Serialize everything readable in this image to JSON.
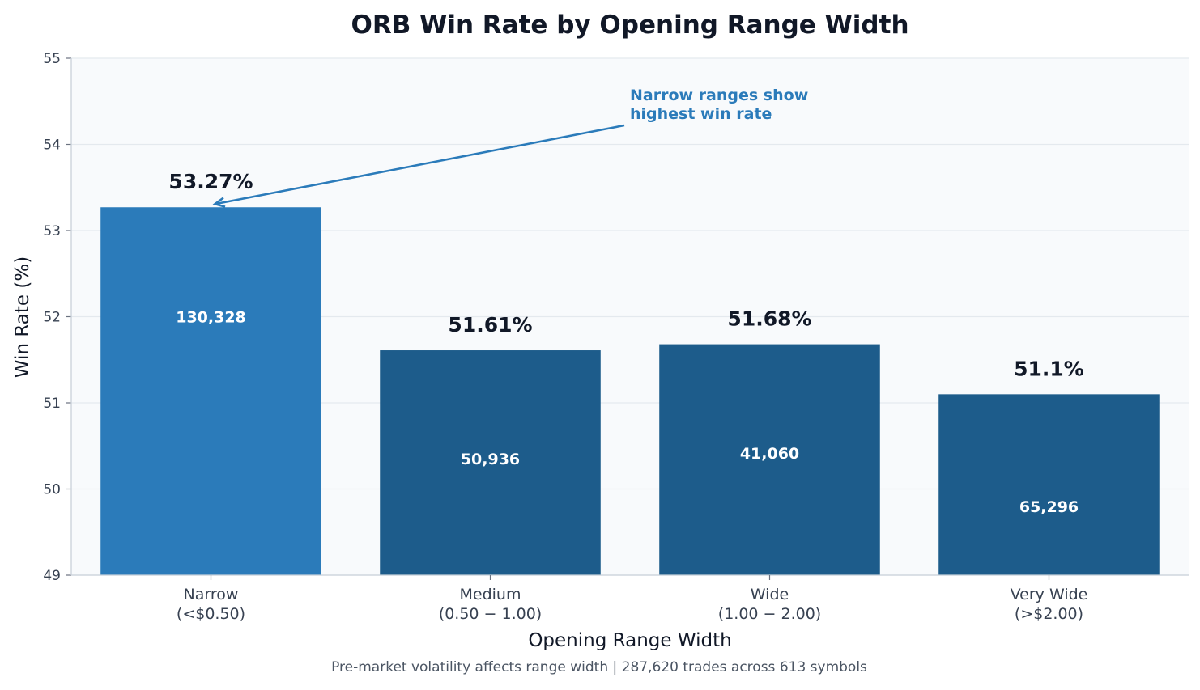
{
  "chart_data": {
    "type": "bar",
    "title": "ORB Win Rate by Opening Range Width",
    "xlabel": "Opening Range Width",
    "ylabel": "Win Rate (%)",
    "caption": "Pre-market volatility affects range width | 287,620 trades across 613 symbols",
    "ylim": [
      49,
      55
    ],
    "yticks": [
      "49",
      "50",
      "51",
      "52",
      "53",
      "54",
      "55"
    ],
    "grid": true,
    "categories": [
      [
        "Narrow",
        "(<$0.50)"
      ],
      [
        "Medium",
        "(0.50 − 1.00)"
      ],
      [
        "Wide",
        "(1.00 − 2.00)"
      ],
      [
        "Very Wide",
        "(>$2.00)"
      ]
    ],
    "values": [
      53.27,
      51.61,
      51.68,
      51.1
    ],
    "value_labels": [
      "53.27%",
      "51.61%",
      "51.68%",
      "51.1%"
    ],
    "trade_counts": [
      "130,328",
      "50,936",
      "41,060",
      "65,296"
    ],
    "trade_count_levels": [
      52.0,
      50.35,
      50.42,
      49.8
    ],
    "highlight_index": 0,
    "annotation": {
      "lines": [
        "Narrow ranges show",
        "highest win rate"
      ],
      "target_index": 0
    },
    "colors": {
      "highlight": "#2b7bba",
      "bar": "#1d5c8b",
      "annotation": "#2b7bba",
      "plot_background": "#f8fafc",
      "grid": "#e4e9ee",
      "title": "#111827",
      "axis_text": "#374151"
    }
  }
}
